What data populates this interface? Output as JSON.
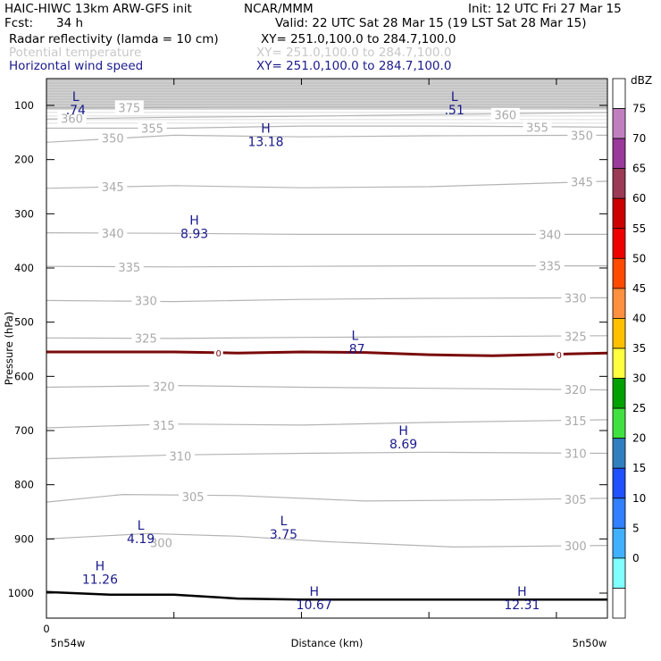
{
  "header": {
    "model": "HAIC-HIWC 13km ARW-GFS init",
    "org": "NCAR/MMM",
    "init": "Init: 12 UTC Fri 27 Mar 15",
    "fcst_label": "Fcst:",
    "fcst_value": "34 h",
    "valid": "Valid: 22 UTC Sat 28 Mar 15 (19 LST Sat 28 Mar 15)",
    "fields": [
      {
        "name": "Radar reflectivity (lamda = 10 cm)",
        "xy": "XY= 251.0,100.0 to 284.7,100.0",
        "color": "#000000"
      },
      {
        "name": "Potential temperature",
        "xy": "XY= 251.0,100.0 to 284.7,100.0",
        "color": "#c8c8c8"
      },
      {
        "name": "Horizontal wind speed",
        "xy": "XY= 251.0,100.0 to 284.7,100.0",
        "color": "#1a1a8c"
      }
    ]
  },
  "chart_data": {
    "type": "cross-section",
    "xlabel": "Distance (km)",
    "ylabel": "Pressure (hPa)",
    "x_start_label": "5n54w",
    "x_end_label": "5n50w",
    "x_zero_label": "0",
    "yticks": [
      100,
      200,
      300,
      400,
      500,
      600,
      700,
      800,
      900,
      1000
    ],
    "xlim": [
      0,
      4.4
    ],
    "xticks": [
      0,
      1,
      2,
      3,
      4
    ],
    "potential_temperature_contours": [
      {
        "value": 300,
        "points": [
          [
            0,
            900
          ],
          [
            0.8,
            890
          ],
          [
            1.5,
            895
          ],
          [
            2.2,
            905
          ],
          [
            3.2,
            915
          ],
          [
            4.4,
            912
          ]
        ],
        "labels": [
          [
            0.9,
            907
          ],
          [
            4.15,
            913
          ]
        ]
      },
      {
        "value": 305,
        "points": [
          [
            0,
            832
          ],
          [
            0.6,
            818
          ],
          [
            1.5,
            820
          ],
          [
            2.5,
            830
          ],
          [
            3.5,
            828
          ],
          [
            4.4,
            825
          ]
        ],
        "labels": [
          [
            1.15,
            822
          ],
          [
            4.15,
            827
          ]
        ]
      },
      {
        "value": 310,
        "points": [
          [
            0,
            752
          ],
          [
            1,
            745
          ],
          [
            2,
            742
          ],
          [
            3,
            740
          ],
          [
            4.4,
            742
          ]
        ],
        "labels": [
          [
            1.05,
            747
          ],
          [
            4.15,
            742
          ]
        ]
      },
      {
        "value": 315,
        "points": [
          [
            0,
            695
          ],
          [
            1,
            688
          ],
          [
            2,
            690
          ],
          [
            3,
            685
          ],
          [
            4.4,
            680
          ]
        ],
        "labels": [
          [
            0.92,
            690
          ],
          [
            4.15,
            682
          ]
        ]
      },
      {
        "value": 320,
        "points": [
          [
            0,
            620
          ],
          [
            1,
            617
          ],
          [
            2,
            620
          ],
          [
            3,
            622
          ],
          [
            4.4,
            625
          ]
        ],
        "labels": [
          [
            0.92,
            618
          ],
          [
            4.15,
            624
          ]
        ]
      },
      {
        "value": 325,
        "points": [
          [
            0,
            529
          ],
          [
            1,
            530
          ],
          [
            2,
            528
          ],
          [
            3,
            527
          ],
          [
            4.4,
            525
          ]
        ],
        "labels": [
          [
            0.78,
            529
          ],
          [
            4.15,
            526
          ]
        ]
      },
      {
        "value": 330,
        "points": [
          [
            0,
            460
          ],
          [
            1,
            462
          ],
          [
            2,
            458
          ],
          [
            3,
            456
          ],
          [
            4.4,
            455
          ]
        ],
        "labels": [
          [
            0.78,
            460
          ],
          [
            4.15,
            455
          ]
        ]
      },
      {
        "value": 335,
        "points": [
          [
            0,
            397
          ],
          [
            1,
            398
          ],
          [
            2,
            397
          ],
          [
            3,
            396
          ],
          [
            4.4,
            396
          ]
        ],
        "labels": [
          [
            0.65,
            398
          ],
          [
            3.95,
            396
          ]
        ]
      },
      {
        "value": 340,
        "points": [
          [
            0,
            335
          ],
          [
            1,
            336
          ],
          [
            2,
            338
          ],
          [
            3,
            338
          ],
          [
            4.4,
            338
          ]
        ],
        "labels": [
          [
            0.52,
            336
          ],
          [
            3.95,
            338
          ]
        ]
      },
      {
        "value": 345,
        "points": [
          [
            0,
            253
          ],
          [
            1,
            248
          ],
          [
            2,
            252
          ],
          [
            3,
            250
          ],
          [
            4.4,
            240
          ]
        ],
        "labels": [
          [
            0.52,
            250
          ],
          [
            4.2,
            241
          ]
        ]
      },
      {
        "value": 350,
        "points": [
          [
            0,
            168
          ],
          [
            1,
            155
          ],
          [
            2,
            158
          ],
          [
            3,
            156
          ],
          [
            4.4,
            155
          ]
        ],
        "labels": [
          [
            0.52,
            160
          ],
          [
            4.2,
            155
          ]
        ]
      },
      {
        "value": 355,
        "points": [
          [
            0,
            142
          ],
          [
            1,
            142
          ],
          [
            2,
            138
          ],
          [
            3,
            138
          ],
          [
            4.4,
            140
          ]
        ],
        "labels": [
          [
            0.83,
            142
          ],
          [
            3.85,
            140
          ]
        ]
      },
      {
        "value": 360,
        "points": [
          [
            0,
            125
          ],
          [
            1,
            122
          ],
          [
            2,
            120
          ],
          [
            3,
            117
          ],
          [
            4.4,
            113
          ]
        ],
        "labels": [
          [
            0.2,
            124
          ],
          [
            3.6,
            117
          ]
        ]
      },
      {
        "value": 375,
        "points": [
          [
            0,
            105
          ],
          [
            1,
            104
          ],
          [
            2,
            103
          ],
          [
            3,
            103
          ],
          [
            4.4,
            104
          ]
        ],
        "labels": [
          [
            0.65,
            104
          ]
        ]
      }
    ],
    "freezing_line": {
      "label": "0",
      "points": [
        [
          0,
          555
        ],
        [
          1,
          555
        ],
        [
          1.5,
          557
        ],
        [
          2,
          555
        ],
        [
          2.5,
          556
        ],
        [
          3,
          560
        ],
        [
          3.5,
          562
        ],
        [
          4.4,
          557
        ]
      ],
      "label_positions": [
        [
          1.35,
          557
        ],
        [
          4.02,
          560
        ]
      ]
    },
    "terrain_line": {
      "points": [
        [
          0,
          998
        ],
        [
          0.5,
          1003
        ],
        [
          1,
          1003
        ],
        [
          1.5,
          1010
        ],
        [
          2,
          1012
        ],
        [
          3,
          1012
        ],
        [
          4.4,
          1012
        ]
      ]
    },
    "wind_extrema": [
      {
        "type": "L",
        "value": ".74",
        "x": 0.23,
        "p": 92
      },
      {
        "type": "L",
        "value": ".51",
        "x": 3.2,
        "p": 92
      },
      {
        "type": "H",
        "value": "13.18",
        "x": 1.72,
        "p": 150
      },
      {
        "type": "H",
        "value": "8.93",
        "x": 1.16,
        "p": 320
      },
      {
        "type": "L",
        "value": ".87",
        "x": 2.42,
        "p": 533
      },
      {
        "type": "H",
        "value": "8.69",
        "x": 2.8,
        "p": 708
      },
      {
        "type": "L",
        "value": "4.19",
        "x": 0.74,
        "p": 883
      },
      {
        "type": "L",
        "value": "3.75",
        "x": 1.86,
        "p": 875
      },
      {
        "type": "H",
        "value": "11.26",
        "x": 0.42,
        "p": 958
      },
      {
        "type": "H",
        "value": "10.67",
        "x": 2.1,
        "p": 1005
      },
      {
        "type": "H",
        "value": "12.31",
        "x": 3.73,
        "p": 1005
      }
    ],
    "reflectivity_top_band": {
      "p_top": 70,
      "p_bottom": 108
    }
  },
  "colorbar": {
    "unit": "dBZ",
    "levels": [
      "75",
      "70",
      "65",
      "60",
      "55",
      "50",
      "45",
      "40",
      "35",
      "30",
      "25",
      "20",
      "15",
      "10",
      "5",
      "0"
    ],
    "colors": [
      "#ffffff",
      "#c080c0",
      "#9a3a9a",
      "#9a3a55",
      "#cc0000",
      "#ee0000",
      "#ff4a00",
      "#ff9040",
      "#ffc000",
      "#ffff40",
      "#00a000",
      "#40e040",
      "#3080c0",
      "#2050ff",
      "#3080ff",
      "#40b0ff",
      "#80ffff",
      "#ffffff"
    ]
  }
}
